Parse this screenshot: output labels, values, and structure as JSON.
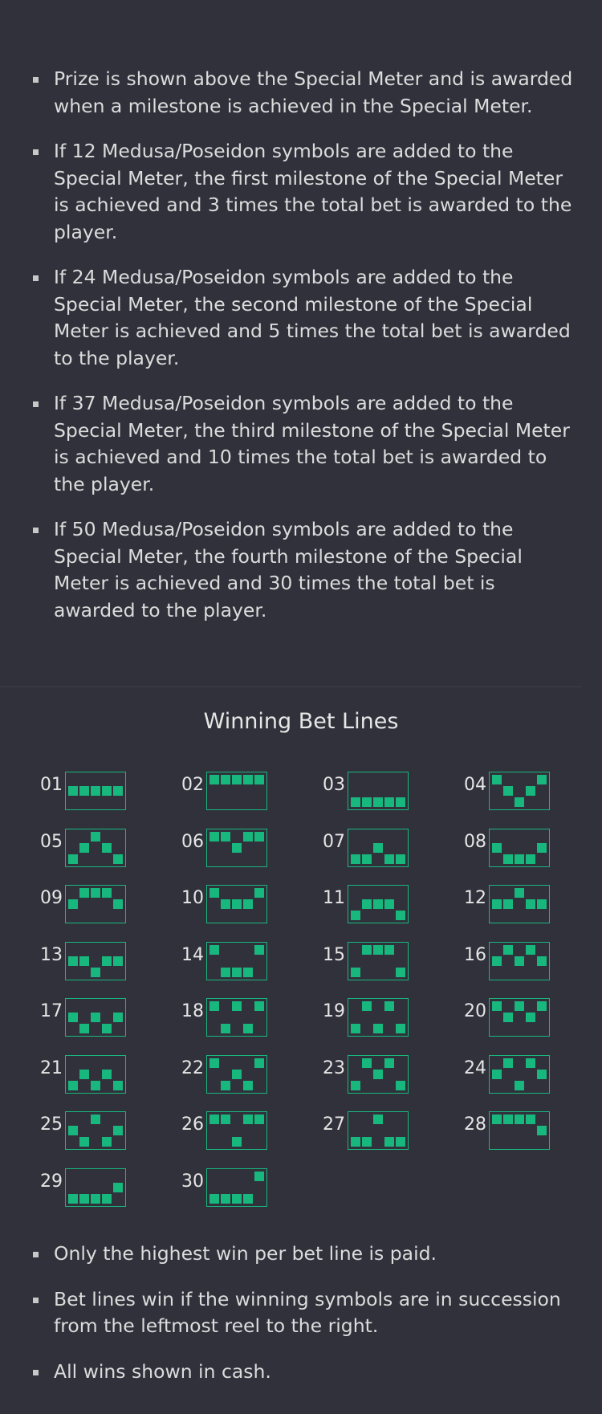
{
  "rules_top": [
    "Prize is shown above the Special Meter and is awarded when a milestone is achieved in the Special Meter.",
    "If 12 Medusa/Poseidon symbols are added to the Special Meter, the first milestone of the Special Meter is achieved and 3 times the total bet is awarded to the player.",
    "If 24 Medusa/Poseidon symbols are added to the Special Meter, the second milestone of the Special Meter is achieved and 5 times the total bet is awarded to the player.",
    "If 37 Medusa/Poseidon symbols are added to the Special Meter, the third milestone of the Special Meter is achieved and 10 times the total bet is awarded to the player.",
    "If 50 Medusa/Poseidon symbols are added to the Special Meter, the fourth milestone of the Special Meter is achieved and 30 times the total bet is awarded to the player."
  ],
  "winning_lines_title": "Winning Bet Lines",
  "winning_lines": [
    {
      "num": "01",
      "rows": [
        1,
        1,
        1,
        1,
        1
      ]
    },
    {
      "num": "02",
      "rows": [
        0,
        0,
        0,
        0,
        0
      ]
    },
    {
      "num": "03",
      "rows": [
        2,
        2,
        2,
        2,
        2
      ]
    },
    {
      "num": "04",
      "rows": [
        0,
        1,
        2,
        1,
        0
      ]
    },
    {
      "num": "05",
      "rows": [
        2,
        1,
        0,
        1,
        2
      ]
    },
    {
      "num": "06",
      "rows": [
        0,
        0,
        1,
        0,
        0
      ]
    },
    {
      "num": "07",
      "rows": [
        2,
        2,
        1,
        2,
        2
      ]
    },
    {
      "num": "08",
      "rows": [
        1,
        2,
        2,
        2,
        1
      ]
    },
    {
      "num": "09",
      "rows": [
        1,
        0,
        0,
        0,
        1
      ]
    },
    {
      "num": "10",
      "rows": [
        0,
        1,
        1,
        1,
        0
      ]
    },
    {
      "num": "11",
      "rows": [
        2,
        1,
        1,
        1,
        2
      ]
    },
    {
      "num": "12",
      "rows": [
        1,
        1,
        0,
        1,
        1
      ]
    },
    {
      "num": "13",
      "rows": [
        1,
        1,
        2,
        1,
        1
      ]
    },
    {
      "num": "14",
      "rows": [
        0,
        2,
        2,
        2,
        0
      ]
    },
    {
      "num": "15",
      "rows": [
        2,
        0,
        0,
        0,
        2
      ]
    },
    {
      "num": "16",
      "rows": [
        1,
        0,
        1,
        0,
        1
      ]
    },
    {
      "num": "17",
      "rows": [
        1,
        2,
        1,
        2,
        1
      ]
    },
    {
      "num": "18",
      "rows": [
        0,
        2,
        0,
        2,
        0
      ]
    },
    {
      "num": "19",
      "rows": [
        2,
        0,
        2,
        0,
        2
      ]
    },
    {
      "num": "20",
      "rows": [
        0,
        1,
        0,
        1,
        0
      ]
    },
    {
      "num": "21",
      "rows": [
        2,
        1,
        2,
        1,
        2
      ]
    },
    {
      "num": "22",
      "rows": [
        0,
        2,
        1,
        2,
        0
      ]
    },
    {
      "num": "23",
      "rows": [
        2,
        0,
        1,
        0,
        2
      ]
    },
    {
      "num": "24",
      "rows": [
        1,
        0,
        2,
        0,
        1
      ]
    },
    {
      "num": "25",
      "rows": [
        1,
        2,
        0,
        2,
        1
      ]
    },
    {
      "num": "26",
      "rows": [
        0,
        0,
        2,
        0,
        0
      ]
    },
    {
      "num": "27",
      "rows": [
        2,
        2,
        0,
        2,
        2
      ]
    },
    {
      "num": "28",
      "rows": [
        0,
        0,
        0,
        0,
        1
      ]
    },
    {
      "num": "29",
      "rows": [
        2,
        2,
        2,
        2,
        1
      ]
    },
    {
      "num": "30",
      "rows": [
        2,
        2,
        2,
        2,
        0
      ]
    }
  ],
  "rules_bottom": [
    "Only the highest win per bet line is paid.",
    "Bet lines win if the winning symbols are in succession from the leftmost reel to the right.",
    "All wins shown in cash."
  ],
  "colors": {
    "background": "#31313c",
    "line_green": "#18b77d",
    "text": "#dcdcdc"
  }
}
